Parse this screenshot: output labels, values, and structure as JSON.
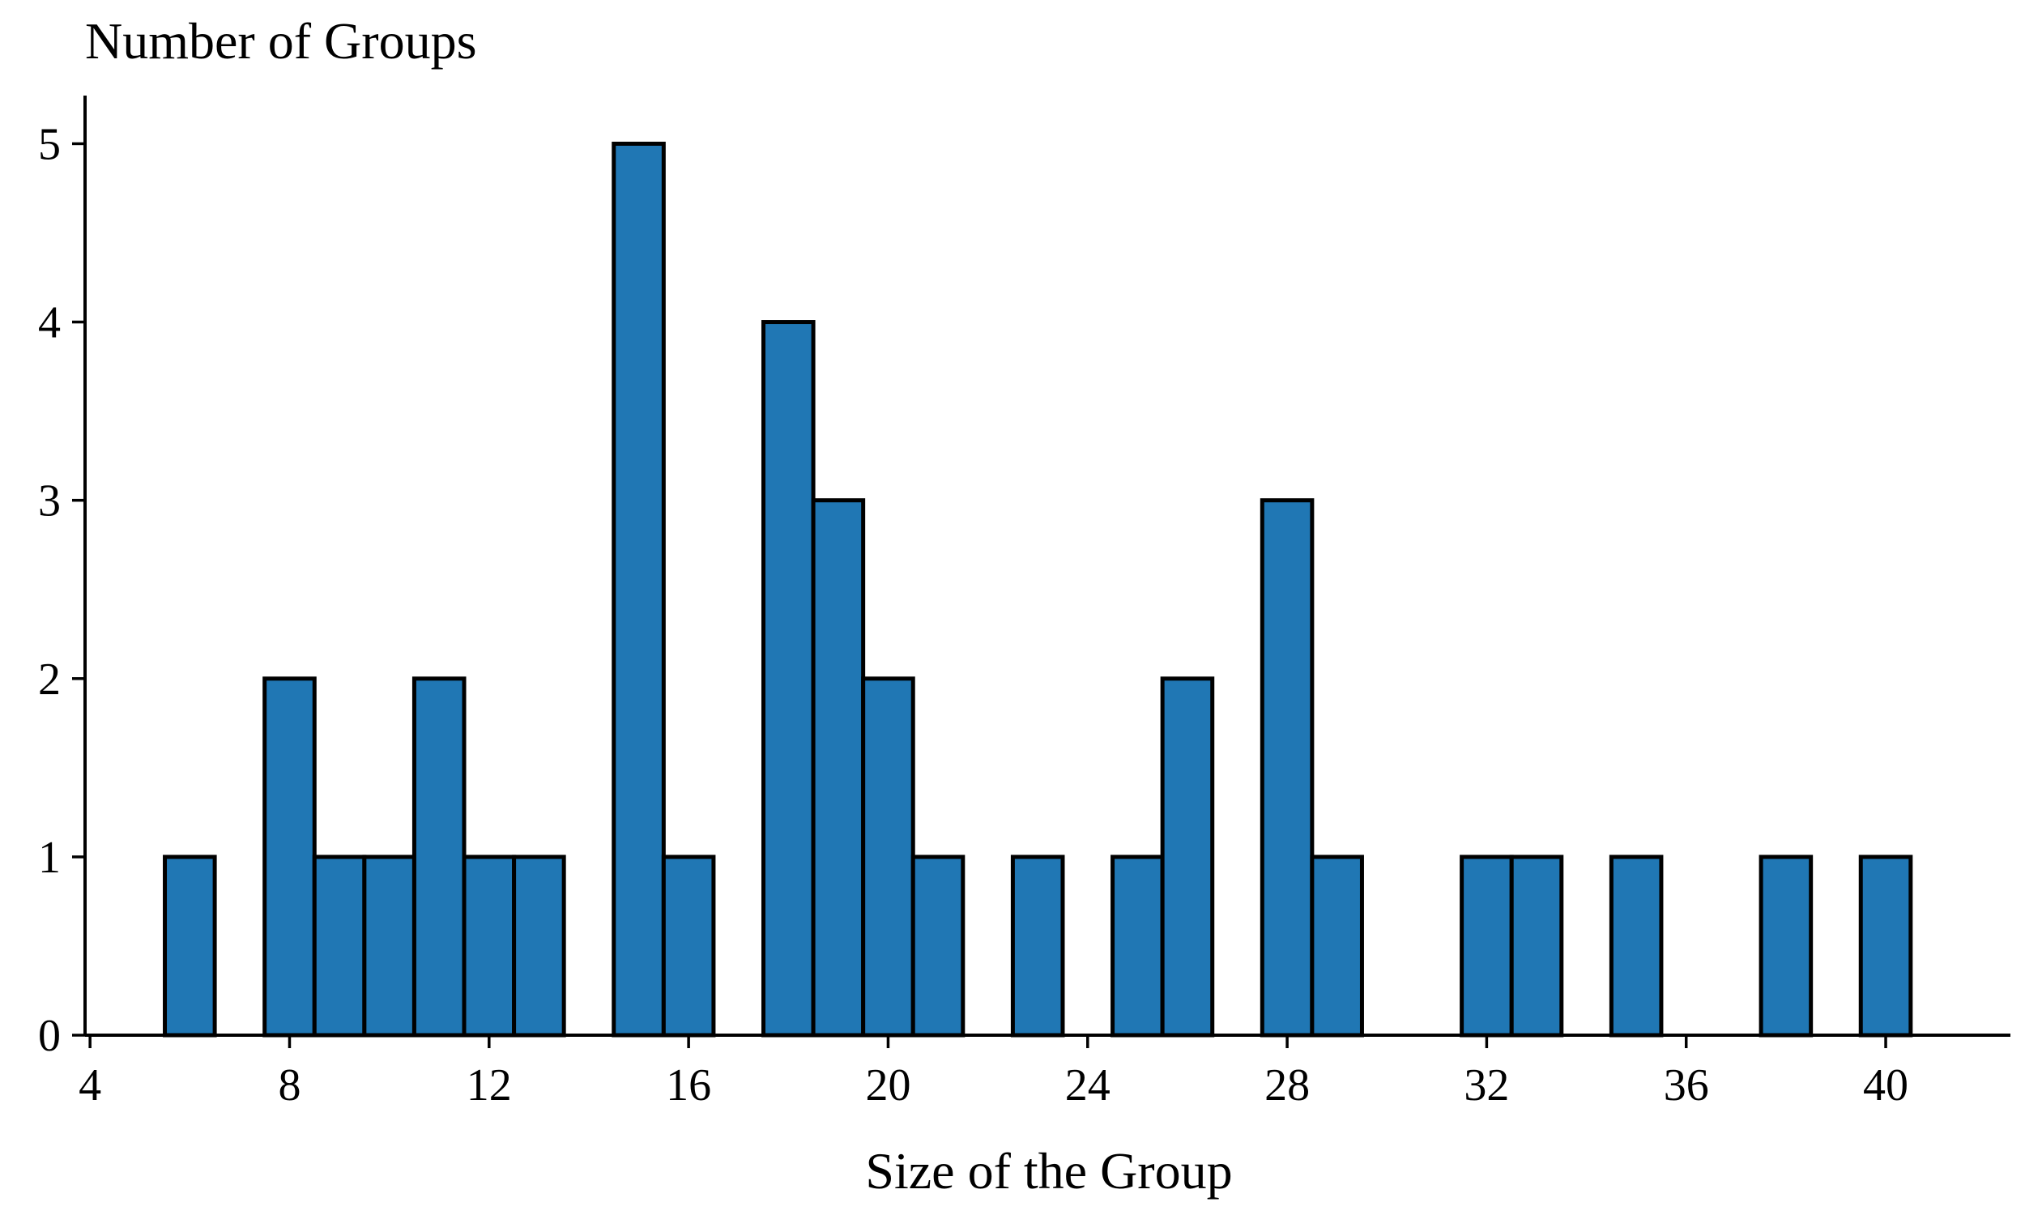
{
  "chart_data": {
    "type": "bar",
    "title": "",
    "ylabel": "Number of Groups",
    "xlabel": "Size of the Group",
    "bar_color": "#2077b4",
    "edge_color": "#000000",
    "bin_width": 1,
    "xlim": [
      3.9,
      42.5
    ],
    "ylim": [
      0,
      5.27
    ],
    "xticks": [
      4,
      8,
      12,
      16,
      20,
      24,
      28,
      32,
      36,
      40
    ],
    "yticks": [
      0,
      1,
      2,
      3,
      4,
      5
    ],
    "grid": false,
    "legend": "none",
    "x": [
      6,
      8,
      9,
      10,
      11,
      12,
      13,
      15,
      16,
      18,
      19,
      20,
      21,
      23,
      25,
      26,
      28,
      29,
      32,
      33,
      35,
      38,
      40
    ],
    "values": [
      1,
      2,
      1,
      1,
      2,
      1,
      1,
      5,
      1,
      4,
      3,
      2,
      1,
      1,
      1,
      2,
      3,
      1,
      1,
      1,
      1,
      1,
      1
    ]
  }
}
